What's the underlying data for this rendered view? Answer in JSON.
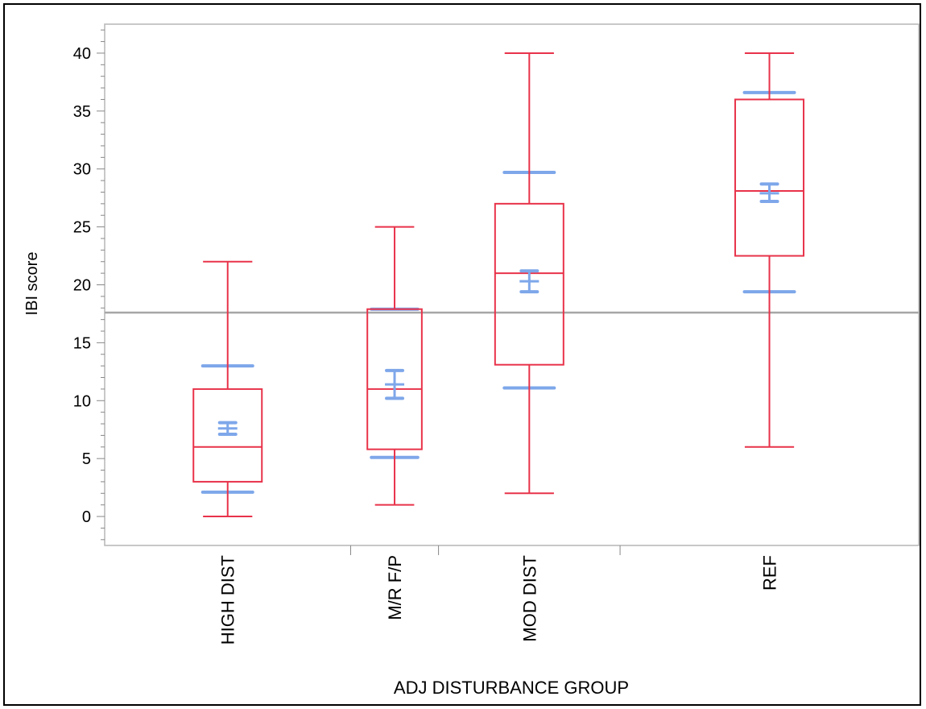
{
  "chart_data": {
    "type": "box",
    "xlabel": "ADJ DISTURBANCE GROUP",
    "ylabel": "IBI score",
    "ylim": [
      -2.5,
      42.5
    ],
    "yticks": [
      0,
      5,
      10,
      15,
      20,
      25,
      30,
      35,
      40
    ],
    "grid": false,
    "reference_line": 17.6,
    "categories": [
      "HIGH DIST",
      "M/R F/P",
      "MOD DIST",
      "REF"
    ],
    "group_weights": [
      0.42,
      0.15,
      0.31,
      0.51
    ],
    "boxes": [
      {
        "category": "HIGH DIST",
        "min": 0,
        "q1": 3,
        "median": 6,
        "q3": 11,
        "max": 22,
        "mean": 7.6,
        "mean_ci": [
          7.1,
          8.1
        ],
        "std_lines": [
          2.1,
          13.0
        ]
      },
      {
        "category": "M/R F/P",
        "min": 1,
        "q1": 5.8,
        "median": 11,
        "q3": 17.9,
        "max": 25,
        "mean": 11.4,
        "mean_ci": [
          10.2,
          12.6
        ],
        "std_lines": [
          5.1,
          17.9
        ]
      },
      {
        "category": "MOD DIST",
        "min": 2,
        "q1": 13.1,
        "median": 21,
        "q3": 27,
        "max": 40,
        "mean": 20.3,
        "mean_ci": [
          19.4,
          21.2
        ],
        "std_lines": [
          11.1,
          29.7
        ]
      },
      {
        "category": "REF",
        "min": 6,
        "q1": 22.5,
        "median": 28.1,
        "q3": 36,
        "max": 40,
        "mean": 27.9,
        "mean_ci": [
          27.2,
          28.7
        ],
        "std_lines": [
          19.4,
          36.6
        ]
      }
    ],
    "colors": {
      "box": "#e8334a",
      "mean": "#7ea7ea",
      "ref_line": "#a6a6a6",
      "frame": "#b5b5b5"
    }
  }
}
